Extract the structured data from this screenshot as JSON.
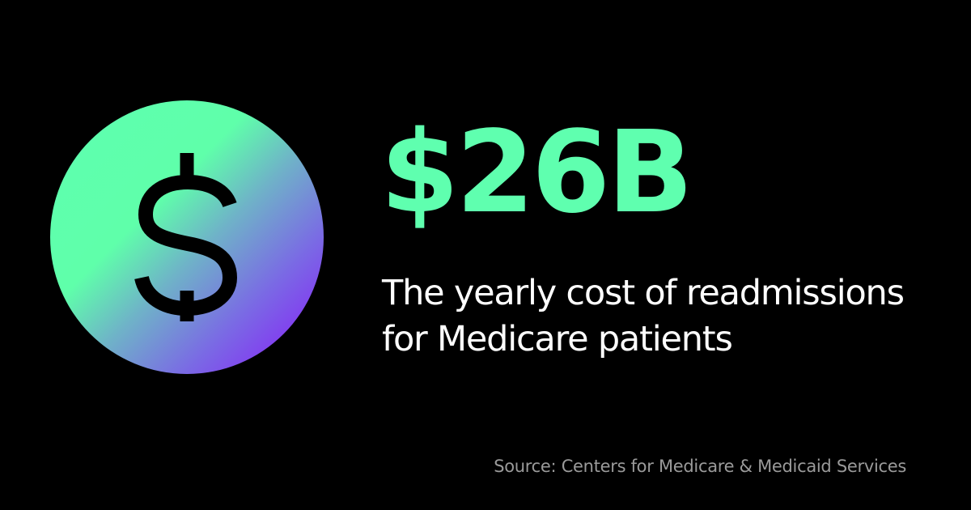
{
  "stat": {
    "value": "$26B"
  },
  "description": {
    "line1": "The yearly cost of readmissions",
    "line2": "for Medicare patients"
  },
  "source": {
    "text": "Source: Centers for Medicare & Medicaid Services"
  },
  "icon": {
    "name": "dollar-sign-icon"
  },
  "colors": {
    "background": "#000000",
    "accent": "#5fffaf",
    "gradient_start": "#5effb0",
    "gradient_end": "#8a12fb",
    "text": "#ffffff",
    "muted_text": "#9a9a9a"
  }
}
